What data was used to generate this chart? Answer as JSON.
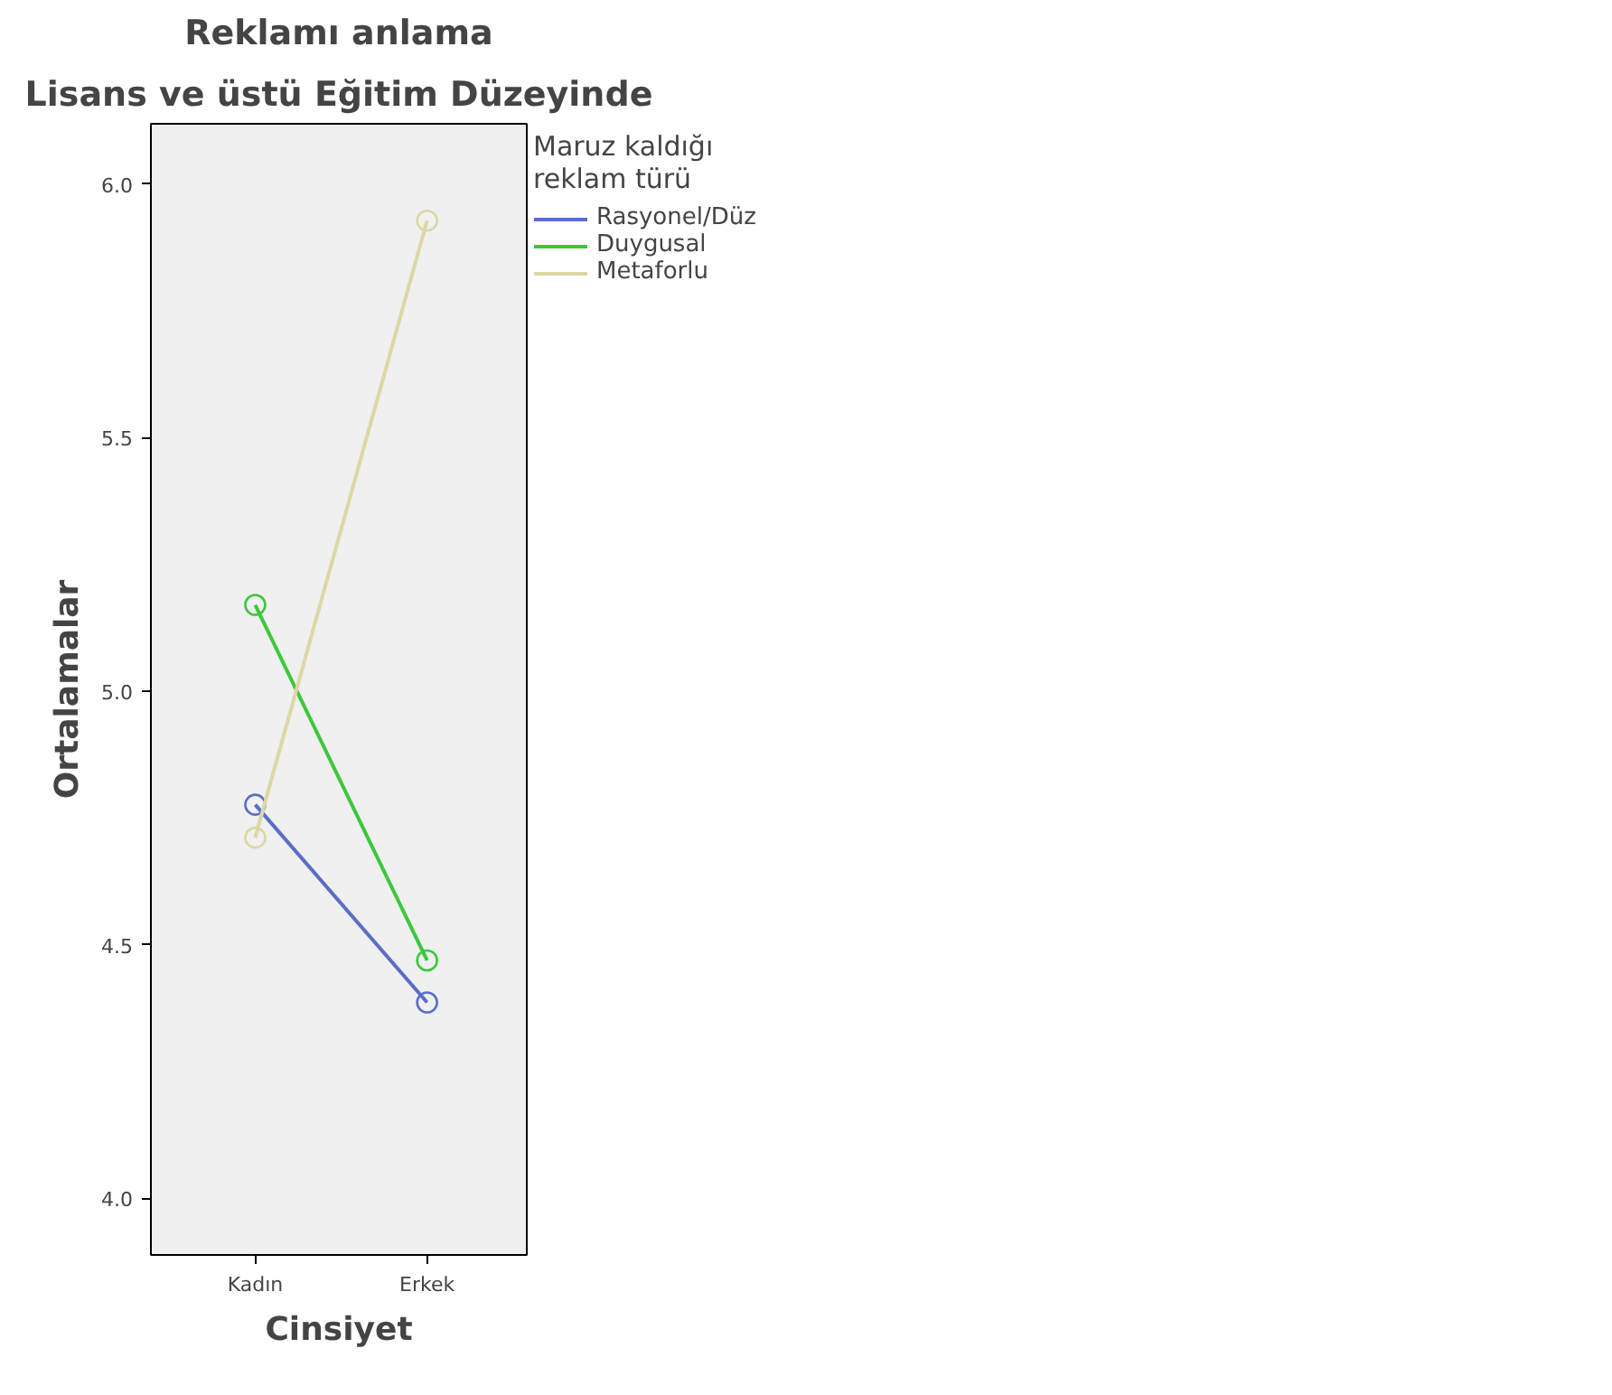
{
  "chart_data": {
    "type": "line",
    "title": "Reklamı anlama",
    "subtitle": "Lisans ve üstü Eğitim Düzeyinde",
    "xlabel": "Cinsiyet",
    "ylabel": "Ortalamalar",
    "legend_title": "Maruz kaldığı reklam türü",
    "categories": [
      "Kadın",
      "Erkek"
    ],
    "series": [
      {
        "name": "Rasyonel/Düz",
        "color": "#5a6ec8",
        "values": [
          4.776,
          4.386
        ]
      },
      {
        "name": "Duygusal",
        "color": "#3cc83c",
        "values": [
          5.17,
          4.469
        ]
      },
      {
        "name": "Metaforlu",
        "color": "#dcd7a5",
        "values": [
          4.711,
          5.928
        ]
      }
    ],
    "ylim": [
      3.888,
      6.119
    ],
    "yticks": [
      {
        "value": 4.0,
        "label": "4.0"
      },
      {
        "value": 4.5,
        "label": "4.5"
      },
      {
        "value": 5.0,
        "label": "5.0"
      },
      {
        "value": 5.5,
        "label": "5.5"
      },
      {
        "value": 6.0,
        "label": "6.0"
      }
    ],
    "grid": false,
    "legend": "top right",
    "marker": "circle",
    "line_style": "solid"
  }
}
